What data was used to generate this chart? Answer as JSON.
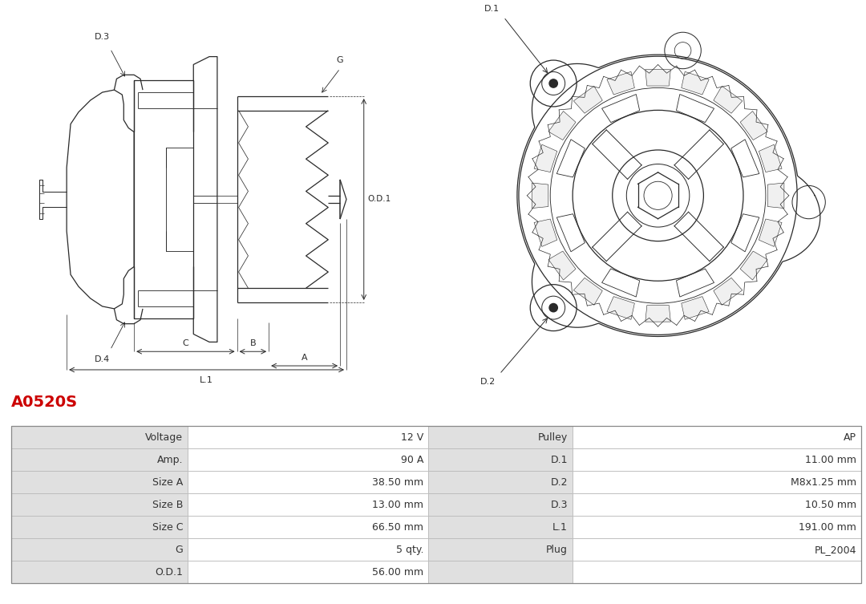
{
  "title": "A0520S",
  "title_color": "#cc0000",
  "title_fontsize": 14,
  "table_rows": [
    [
      "Voltage",
      "12 V",
      "Pulley",
      "AP"
    ],
    [
      "Amp.",
      "90 A",
      "D.1",
      "11.00 mm"
    ],
    [
      "Size A",
      "38.50 mm",
      "D.2",
      "M8x1.25 mm"
    ],
    [
      "Size B",
      "13.00 mm",
      "D.3",
      "10.50 mm"
    ],
    [
      "Size C",
      "66.50 mm",
      "L.1",
      "191.00 mm"
    ],
    [
      "G",
      "5 qty.",
      "Plug",
      "PL_2004"
    ],
    [
      "O.D.1",
      "56.00 mm",
      "",
      ""
    ]
  ],
  "label_bg": "#e0e0e0",
  "value_bg": "#ffffff",
  "border_color": "#bbbbbb",
  "text_color": "#333333",
  "font_size": 9,
  "lc": "#2a2a2a",
  "lw": 0.9
}
